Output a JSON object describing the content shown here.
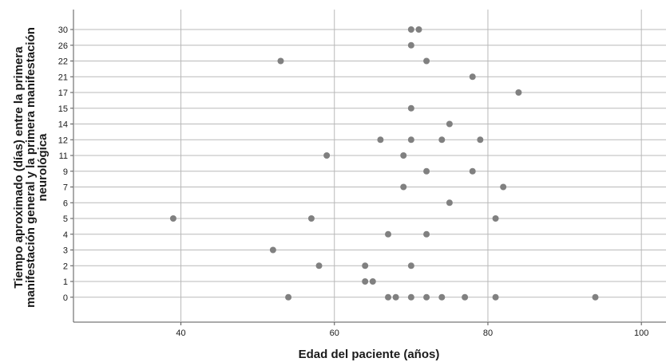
{
  "chart_data": {
    "type": "scatter",
    "title": "",
    "xlabel": "Edad del paciente (años)",
    "ylabel_lines": [
      "Tiempo aproximado (días) entre la primera",
      "manifestación general y la primera manifestación",
      "neurológica"
    ],
    "xlim": [
      26,
      103
    ],
    "x_ticks": [
      40,
      60,
      80,
      100
    ],
    "y_categories": [
      "0",
      "1",
      "2",
      "3",
      "4",
      "5",
      "6",
      "7",
      "9",
      "11",
      "12",
      "14",
      "15",
      "17",
      "21",
      "22",
      "26",
      "30"
    ],
    "grid": true,
    "marker_color": "#808080",
    "points": [
      {
        "x": 70,
        "y": "30"
      },
      {
        "x": 71,
        "y": "30"
      },
      {
        "x": 70,
        "y": "26"
      },
      {
        "x": 53,
        "y": "22"
      },
      {
        "x": 72,
        "y": "22"
      },
      {
        "x": 78,
        "y": "21"
      },
      {
        "x": 84,
        "y": "17"
      },
      {
        "x": 70,
        "y": "15"
      },
      {
        "x": 75,
        "y": "14"
      },
      {
        "x": 66,
        "y": "12"
      },
      {
        "x": 70,
        "y": "12"
      },
      {
        "x": 74,
        "y": "12"
      },
      {
        "x": 79,
        "y": "12"
      },
      {
        "x": 59,
        "y": "11"
      },
      {
        "x": 69,
        "y": "11"
      },
      {
        "x": 72,
        "y": "9"
      },
      {
        "x": 78,
        "y": "9"
      },
      {
        "x": 69,
        "y": "7"
      },
      {
        "x": 82,
        "y": "7"
      },
      {
        "x": 75,
        "y": "6"
      },
      {
        "x": 39,
        "y": "5"
      },
      {
        "x": 57,
        "y": "5"
      },
      {
        "x": 81,
        "y": "5"
      },
      {
        "x": 67,
        "y": "4"
      },
      {
        "x": 72,
        "y": "4"
      },
      {
        "x": 52,
        "y": "3"
      },
      {
        "x": 58,
        "y": "2"
      },
      {
        "x": 64,
        "y": "2"
      },
      {
        "x": 70,
        "y": "2"
      },
      {
        "x": 64,
        "y": "1"
      },
      {
        "x": 65,
        "y": "1"
      },
      {
        "x": 54,
        "y": "0"
      },
      {
        "x": 67,
        "y": "0"
      },
      {
        "x": 68,
        "y": "0"
      },
      {
        "x": 70,
        "y": "0"
      },
      {
        "x": 72,
        "y": "0"
      },
      {
        "x": 74,
        "y": "0"
      },
      {
        "x": 77,
        "y": "0"
      },
      {
        "x": 81,
        "y": "0"
      },
      {
        "x": 94,
        "y": "0"
      }
    ]
  }
}
